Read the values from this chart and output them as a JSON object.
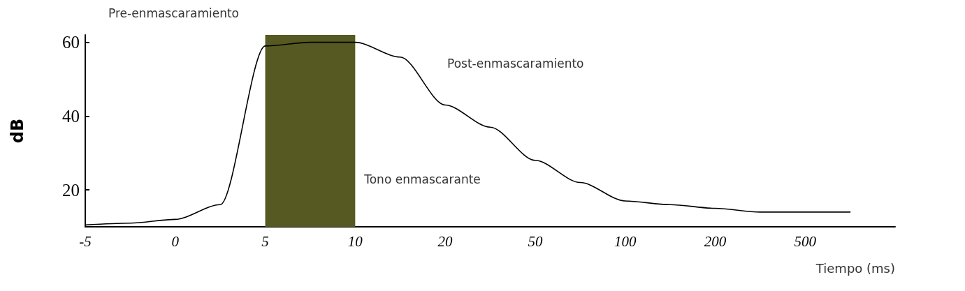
{
  "chart_data": {
    "type": "line",
    "xlabel": "Tiempo (ms)",
    "ylabel": "dB",
    "categories": [
      "-5",
      null,
      "0",
      null,
      "5",
      null,
      "10",
      null,
      "20",
      null,
      "50",
      null,
      "100",
      null,
      "200",
      null,
      "500",
      null,
      null
    ],
    "series": [
      {
        "color": "#000000",
        "values": [
          10.5,
          11,
          12,
          16,
          59,
          60,
          60,
          56,
          43,
          37,
          28,
          22,
          17,
          16,
          15,
          14,
          14,
          14,
          null
        ]
      }
    ],
    "ylim": [
      10,
      62
    ],
    "yticks": [
      20,
      40,
      60
    ],
    "grid": false,
    "marker": "none",
    "line_style": "solid",
    "bands": [
      {
        "axis": "x",
        "from": "5",
        "to": "10",
        "label": "Tono enmascarante",
        "color": "#565a22"
      }
    ],
    "annotations": [
      "Pre-enmascaramiento",
      "Post-enmascaramiento"
    ]
  }
}
